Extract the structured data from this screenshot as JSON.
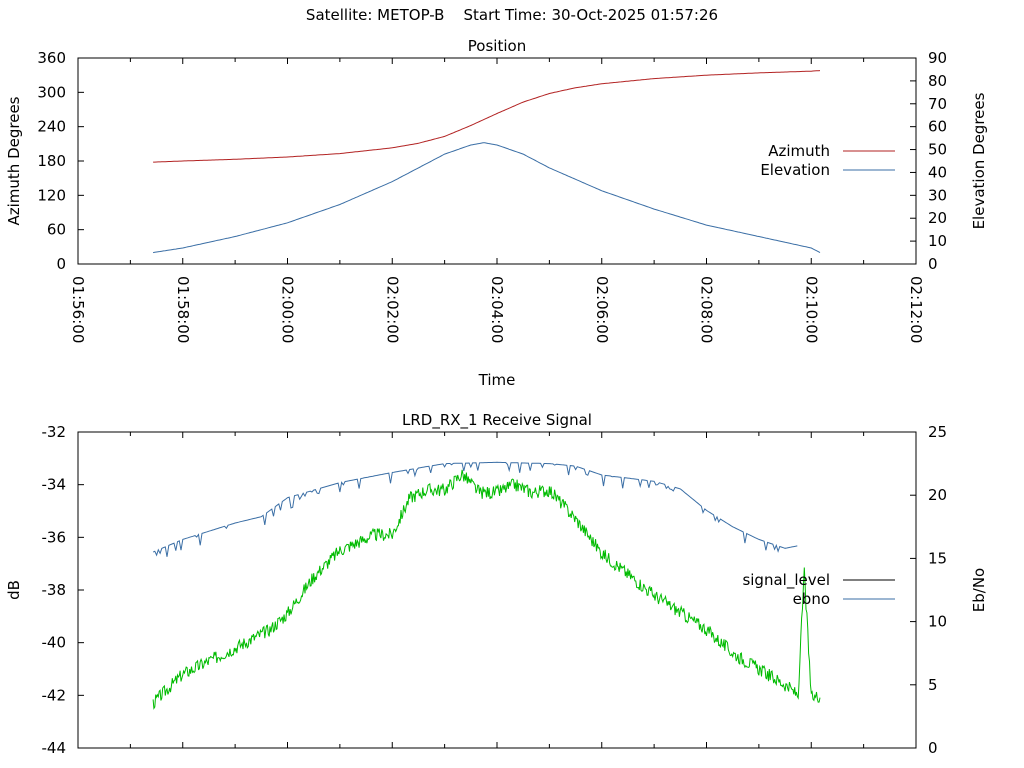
{
  "header": {
    "satellite_label": "Satellite: METOP-B",
    "start_time_label": "Start Time: 30-Oct-2025 01:57:26"
  },
  "colors": {
    "azimuth": "#b22222",
    "elevation": "#3a6ea5",
    "signal_level": "#000000",
    "ebno": "#3a6ea5",
    "ebno_raw": "#00bb00"
  },
  "chart_data": [
    {
      "type": "line",
      "title": "Position",
      "xlabel": "Time",
      "ylabel": "Azimuth Degrees",
      "y2label": "Elevation Degrees",
      "xlim": [
        "01:56:00",
        "02:12:00"
      ],
      "xticks": [
        "01:56:00",
        "01:58:00",
        "02:00:00",
        "02:02:00",
        "02:04:00",
        "02:06:00",
        "02:08:00",
        "02:10:00",
        "02:12:00"
      ],
      "ylim": [
        0,
        360
      ],
      "yticks": [
        0,
        60,
        120,
        180,
        240,
        300,
        360
      ],
      "y2lim": [
        0,
        90
      ],
      "y2ticks": [
        0,
        10,
        20,
        30,
        40,
        50,
        60,
        70,
        80,
        90
      ],
      "legend_position": "right",
      "series": [
        {
          "name": "Azimuth",
          "axis": "y",
          "x": [
            "01:57:26",
            "01:58:00",
            "01:59:00",
            "02:00:00",
            "02:01:00",
            "02:02:00",
            "02:02:30",
            "02:03:00",
            "02:03:30",
            "02:04:00",
            "02:04:30",
            "02:05:00",
            "02:05:30",
            "02:06:00",
            "02:07:00",
            "02:08:00",
            "02:09:00",
            "02:10:00",
            "02:10:10"
          ],
          "values": [
            178,
            180,
            183,
            187,
            193,
            203,
            211,
            223,
            242,
            263,
            283,
            298,
            308,
            315,
            324,
            330,
            334,
            337,
            338
          ]
        },
        {
          "name": "Elevation",
          "axis": "y2",
          "x": [
            "01:57:26",
            "01:58:00",
            "01:59:00",
            "02:00:00",
            "02:01:00",
            "02:02:00",
            "02:02:30",
            "02:03:00",
            "02:03:30",
            "02:03:45",
            "02:04:00",
            "02:04:30",
            "02:05:00",
            "02:05:30",
            "02:06:00",
            "02:07:00",
            "02:08:00",
            "02:09:00",
            "02:10:00",
            "02:10:10"
          ],
          "values": [
            5,
            7,
            12,
            18,
            26,
            36,
            42,
            48,
            52,
            53,
            52,
            48,
            42,
            37,
            32,
            24,
            17,
            12,
            7,
            5
          ]
        }
      ]
    },
    {
      "type": "line",
      "title": "LRD_RX_1 Receive Signal",
      "ylabel": "dB",
      "y2label": "Eb/No",
      "xlim": [
        "01:56:00",
        "02:12:00"
      ],
      "ylim": [
        -44,
        -32
      ],
      "yticks": [
        -44,
        -42,
        -40,
        -38,
        -36,
        -34,
        -32
      ],
      "y2lim": [
        0,
        25
      ],
      "y2ticks": [
        0,
        5,
        10,
        15,
        20,
        25
      ],
      "legend_position": "right",
      "series": [
        {
          "name": "signal_level",
          "axis": "y",
          "x": [],
          "values": []
        },
        {
          "name": "ebno",
          "axis": "y2",
          "x": [
            "01:57:26",
            "01:58:00",
            "01:59:00",
            "01:59:30",
            "02:00:00",
            "02:01:00",
            "02:02:00",
            "02:03:00",
            "02:04:00",
            "02:05:00",
            "02:05:30",
            "02:06:00",
            "02:07:00",
            "02:07:30",
            "02:08:00",
            "02:08:30",
            "02:09:00",
            "02:09:30",
            "02:09:45"
          ],
          "values": [
            15.5,
            16.5,
            17.8,
            18.3,
            19.8,
            21.0,
            21.8,
            22.5,
            22.6,
            22.5,
            22.3,
            21.6,
            21.1,
            20.5,
            18.8,
            17.5,
            16.5,
            15.8,
            16.0
          ]
        },
        {
          "axis": "y",
          "x": [
            "01:57:26",
            "01:58:00",
            "01:59:00",
            "01:59:40",
            "02:00:00",
            "02:00:30",
            "02:01:00",
            "02:01:40",
            "02:02:00",
            "02:02:20",
            "02:02:40",
            "02:03:00",
            "02:03:20",
            "02:03:40",
            "02:04:00",
            "02:04:20",
            "02:04:40",
            "02:05:00",
            "02:05:30",
            "02:06:00",
            "02:07:00",
            "02:08:00",
            "02:08:30",
            "02:09:00",
            "02:09:30",
            "02:09:45",
            "02:09:52",
            "02:10:00",
            "02:10:10"
          ],
          "values": [
            -42.3,
            -41.2,
            -40.2,
            -39.5,
            -38.9,
            -37.5,
            -36.5,
            -35.9,
            -35.9,
            -34.5,
            -34.2,
            -34.2,
            -33.6,
            -34.3,
            -34.3,
            -34.0,
            -34.3,
            -34.2,
            -35.3,
            -36.6,
            -38.2,
            -39.5,
            -40.4,
            -41.0,
            -41.6,
            -42.0,
            -37.3,
            -42.1,
            -42.0
          ]
        }
      ]
    }
  ]
}
